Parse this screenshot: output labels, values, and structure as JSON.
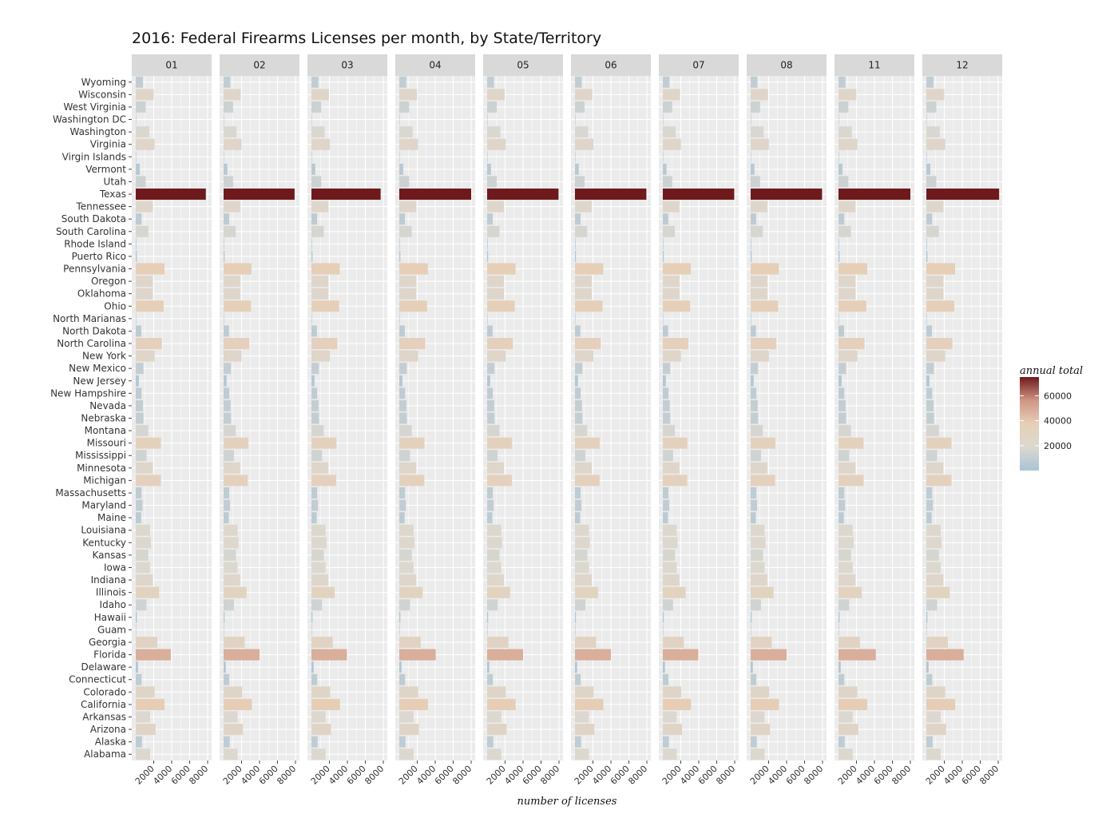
{
  "chart_data": {
    "type": "bar",
    "orientation": "horizontal",
    "faceted_by": "month",
    "title": "2016: Federal Firearms Licenses per month, by State/Territory",
    "xlabel": "number of licenses",
    "ylabel": "",
    "xlim": [
      0,
      8000
    ],
    "x_ticks": [
      2000,
      4000,
      6000,
      8000
    ],
    "grid": true,
    "facets": [
      "01",
      "02",
      "03",
      "04",
      "05",
      "06",
      "07",
      "08",
      "11",
      "12"
    ],
    "states": [
      "Wyoming",
      "Wisconsin",
      "West Virginia",
      "Washington DC",
      "Washington",
      "Virginia",
      "Virgin Islands",
      "Vermont",
      "Utah",
      "Texas",
      "Tennessee",
      "South Dakota",
      "South Carolina",
      "Rhode Island",
      "Puerto Rico",
      "Pennsylvania",
      "Oregon",
      "Oklahoma",
      "Ohio",
      "North Marianas",
      "North Dakota",
      "North Carolina",
      "New York",
      "New Mexico",
      "New Jersey",
      "New Hampshire",
      "Nevada",
      "Nebraska",
      "Montana",
      "Missouri",
      "Mississippi",
      "Minnesota",
      "Michigan",
      "Massachusetts",
      "Maryland",
      "Maine",
      "Louisiana",
      "Kentucky",
      "Kansas",
      "Iowa",
      "Indiana",
      "Illinois",
      "Idaho",
      "Hawaii",
      "Guam",
      "Georgia",
      "Florida",
      "Delaware",
      "Connecticut",
      "Colorado",
      "California",
      "Arkansas",
      "Arizona",
      "Alaska",
      "Alabama"
    ],
    "series": [
      {
        "name": "01",
        "values": [
          800,
          2000,
          1100,
          5,
          1500,
          2100,
          20,
          450,
          1100,
          7800,
          1900,
          650,
          1400,
          60,
          120,
          3200,
          1900,
          1900,
          3100,
          5,
          620,
          2900,
          2100,
          850,
          350,
          650,
          800,
          850,
          1400,
          2800,
          1200,
          1900,
          2800,
          650,
          750,
          600,
          1600,
          1700,
          1400,
          1600,
          1900,
          2600,
          1200,
          120,
          10,
          2400,
          3900,
          250,
          650,
          2100,
          3200,
          1600,
          2200,
          700,
          1600
        ]
      },
      {
        "name": "02",
        "values": [
          750,
          1900,
          1050,
          5,
          1450,
          2000,
          20,
          420,
          1050,
          7900,
          1850,
          620,
          1350,
          55,
          110,
          3100,
          1850,
          1850,
          3050,
          5,
          600,
          2850,
          2000,
          820,
          340,
          630,
          780,
          830,
          1350,
          2750,
          1150,
          1850,
          2700,
          630,
          720,
          580,
          1550,
          1650,
          1380,
          1550,
          1850,
          2550,
          1150,
          110,
          10,
          2350,
          4000,
          240,
          630,
          2050,
          3150,
          1550,
          2150,
          680,
          1550
        ]
      },
      {
        "name": "03",
        "values": [
          780,
          1950,
          1080,
          5,
          1480,
          2050,
          20,
          430,
          1080,
          7700,
          1880,
          630,
          1380,
          58,
          115,
          3150,
          1880,
          1880,
          3080,
          5,
          610,
          2880,
          2050,
          830,
          345,
          640,
          790,
          840,
          1380,
          2780,
          1180,
          1880,
          2750,
          640,
          730,
          590,
          1580,
          1680,
          1390,
          1580,
          1880,
          2580,
          1180,
          115,
          10,
          2380,
          3950,
          245,
          640,
          2080,
          3180,
          1580,
          2180,
          690,
          1580
        ]
      },
      {
        "name": "04",
        "values": [
          790,
          1980,
          1090,
          5,
          1490,
          2080,
          20,
          440,
          1090,
          8000,
          1890,
          640,
          1390,
          59,
          118,
          3180,
          1890,
          1890,
          3090,
          5,
          615,
          2890,
          2080,
          840,
          348,
          645,
          795,
          845,
          1390,
          2790,
          1190,
          1890,
          2780,
          645,
          735,
          595,
          1590,
          1690,
          1395,
          1590,
          1890,
          2590,
          1190,
          118,
          10,
          2390,
          4050,
          248,
          645,
          2090,
          3190,
          1590,
          2190,
          695,
          1590
        ]
      },
      {
        "name": "05",
        "values": [
          770,
          1960,
          1070,
          5,
          1470,
          2060,
          20,
          425,
          1070,
          7950,
          1870,
          625,
          1370,
          57,
          112,
          3160,
          1870,
          1870,
          3070,
          5,
          605,
          2870,
          2060,
          825,
          342,
          635,
          785,
          835,
          1370,
          2770,
          1170,
          1870,
          2760,
          635,
          725,
          585,
          1570,
          1670,
          1385,
          1570,
          1870,
          2570,
          1170,
          112,
          10,
          2370,
          4000,
          242,
          635,
          2070,
          3170,
          1570,
          2170,
          685,
          1570
        ]
      },
      {
        "name": "06",
        "values": [
          760,
          1940,
          1060,
          5,
          1460,
          2040,
          20,
          420,
          1060,
          7950,
          1860,
          620,
          1360,
          56,
          110,
          3140,
          1860,
          1860,
          3060,
          5,
          600,
          2860,
          2040,
          820,
          340,
          630,
          780,
          830,
          1360,
          2760,
          1160,
          1860,
          2740,
          630,
          720,
          580,
          1560,
          1660,
          1380,
          1560,
          1860,
          2560,
          1160,
          110,
          10,
          2360,
          4000,
          240,
          630,
          2060,
          3160,
          1560,
          2160,
          680,
          1560
        ]
      },
      {
        "name": "07",
        "values": [
          740,
          1920,
          1040,
          5,
          1440,
          2020,
          20,
          410,
          1040,
          7950,
          1840,
          610,
          1340,
          55,
          108,
          3120,
          1840,
          1840,
          3040,
          5,
          590,
          2840,
          2020,
          810,
          335,
          625,
          775,
          825,
          1340,
          2740,
          1140,
          1840,
          2720,
          625,
          715,
          575,
          1540,
          1640,
          1370,
          1540,
          1840,
          2540,
          1140,
          108,
          10,
          2340,
          3950,
          238,
          625,
          2040,
          3140,
          1540,
          2140,
          675,
          1540
        ]
      },
      {
        "name": "08",
        "values": [
          750,
          1930,
          1050,
          5,
          1450,
          2030,
          20,
          415,
          1050,
          7950,
          1850,
          615,
          1350,
          56,
          110,
          3130,
          1850,
          1850,
          3050,
          5,
          595,
          2850,
          2030,
          815,
          338,
          628,
          778,
          828,
          1350,
          2750,
          1150,
          1850,
          2730,
          628,
          718,
          578,
          1550,
          1650,
          1375,
          1550,
          1850,
          2550,
          1150,
          110,
          10,
          2350,
          4000,
          239,
          628,
          2050,
          3150,
          1550,
          2150,
          678,
          1550
        ]
      },
      {
        "name": "11",
        "values": [
          770,
          1990,
          1090,
          5,
          1490,
          2090,
          20,
          440,
          1090,
          8000,
          1890,
          640,
          1390,
          59,
          118,
          3190,
          1890,
          1890,
          3090,
          5,
          615,
          2890,
          2090,
          840,
          348,
          645,
          795,
          845,
          1390,
          2790,
          1190,
          1890,
          2790,
          645,
          735,
          595,
          1590,
          1690,
          1395,
          1590,
          1890,
          2590,
          1190,
          118,
          10,
          2390,
          4150,
          248,
          645,
          2090,
          3190,
          1590,
          2190,
          695,
          1590
        ]
      },
      {
        "name": "12",
        "values": [
          790,
          2000,
          1100,
          5,
          1500,
          2100,
          20,
          445,
          1100,
          8100,
          1900,
          645,
          1400,
          60,
          120,
          3200,
          1900,
          1900,
          3100,
          5,
          620,
          2900,
          2100,
          845,
          350,
          650,
          800,
          850,
          1400,
          2800,
          1200,
          1900,
          2800,
          650,
          740,
          600,
          1600,
          1700,
          1400,
          1600,
          1900,
          2600,
          1200,
          120,
          10,
          2400,
          4150,
          250,
          650,
          2100,
          3200,
          1600,
          2200,
          700,
          1600
        ]
      }
    ],
    "legend": {
      "title": "annual total",
      "breaks": [
        20000,
        40000,
        60000
      ],
      "break_labels": [
        "20000",
        "40000",
        "60000"
      ],
      "range": [
        0,
        75000
      ],
      "placement": "right",
      "colors": [
        "#a9c3d6",
        "#dcd8cf",
        "#e6cfb8",
        "#cf9585",
        "#6e1a1d"
      ]
    }
  }
}
